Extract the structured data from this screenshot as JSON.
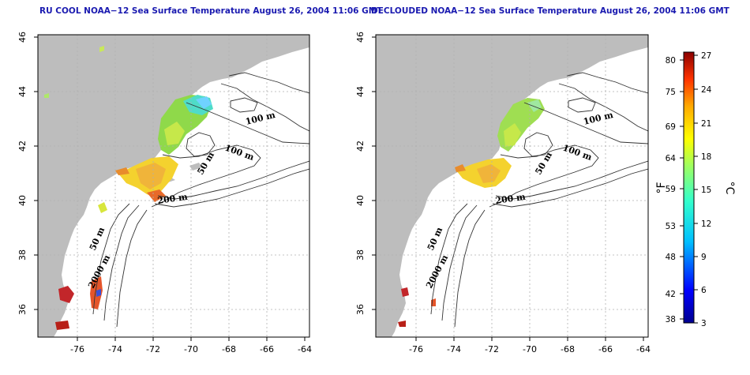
{
  "panels": [
    {
      "id": "left",
      "title": "RU COOL NOAA−12 Sea Surface Temperature August 26, 2004 11:06 GMT",
      "x_ticks": [
        "-76",
        "-74",
        "-72",
        "-70",
        "-68",
        "-66",
        "-64"
      ],
      "y_ticks": [
        "36",
        "38",
        "40",
        "42",
        "44",
        "46"
      ],
      "contour_labels": [
        "100 m",
        "100 m",
        "50 m",
        "200 m",
        "50 m",
        "2000 m"
      ]
    },
    {
      "id": "right",
      "title": "DECLOUDED NOAA−12 Sea Surface Temperature August 26, 2004 11:06 GMT",
      "x_ticks": [
        "-76",
        "-74",
        "-72",
        "-70",
        "-68",
        "-66",
        "-64"
      ],
      "y_ticks": [
        "36",
        "38",
        "40",
        "42",
        "44",
        "46"
      ],
      "contour_labels": [
        "100 m",
        "100 m",
        "50 m",
        "200 m",
        "50 m",
        "2000 m"
      ]
    }
  ],
  "colorbar": {
    "fahrenheit_labels": [
      "80",
      "75",
      "69",
      "64",
      "59",
      "53",
      "48",
      "42",
      "38"
    ],
    "celsius_labels": [
      "27",
      "24",
      "21",
      "18",
      "15",
      "12",
      "9",
      "6",
      "3"
    ],
    "unit_f": "°F",
    "unit_c": "°C"
  },
  "colors": {
    "land": "#bdbdbd",
    "title": "#1a1ab0",
    "grid": "#b0b0b0"
  }
}
